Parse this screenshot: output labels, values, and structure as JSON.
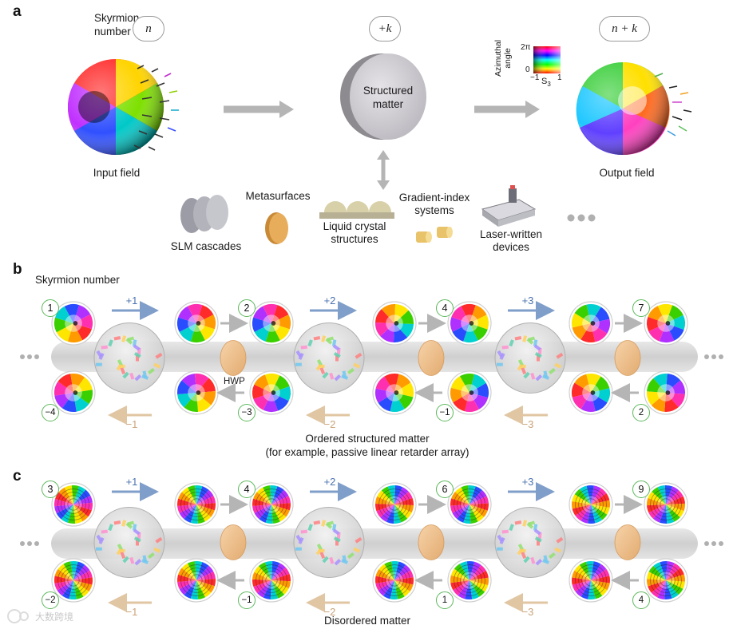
{
  "panel_a": {
    "letter": "a",
    "skyrmion_label_line1": "Skyrmion",
    "skyrmion_label_line2": "number",
    "input_pill": "n",
    "matter_pill": "+k",
    "output_pill": "n + k",
    "matter_label_line1": "Structured",
    "matter_label_line2": "matter",
    "input_label": "Input field",
    "output_label": "Output field",
    "colorbar": {
      "ylabel_line1": "Azimuthal",
      "ylabel_line2": "angle",
      "top_tick": "2π",
      "bottom_tick": "0",
      "left_tick": "−1",
      "right_tick": "1",
      "xlabel": "S",
      "xlabel_sub": "3"
    },
    "devices": [
      {
        "line1": "SLM cascades",
        "line2": ""
      },
      {
        "line1": "Metasurfaces",
        "line2": ""
      },
      {
        "line1": "Liquid crystal",
        "line2": "structures"
      },
      {
        "line1": "Gradient-index",
        "line2": "systems"
      },
      {
        "line1": "Laser-written",
        "line2": "devices"
      }
    ]
  },
  "panel_b": {
    "letter": "b",
    "heading": "Skyrmion number",
    "top_numbers": [
      "1",
      "2",
      "4",
      "7"
    ],
    "top_ops": [
      "+1",
      "+2",
      "+3"
    ],
    "bottom_numbers": [
      "−4",
      "−3",
      "−1",
      "2"
    ],
    "bottom_ops": [
      "−1",
      "−2",
      "−3"
    ],
    "hwp": "HWP",
    "caption_line1": "Ordered structured matter",
    "caption_line2": "(for example, passive linear retarder array)"
  },
  "panel_c": {
    "letter": "c",
    "top_numbers": [
      "3",
      "4",
      "6",
      "9"
    ],
    "top_ops": [
      "+1",
      "+2",
      "+3"
    ],
    "bottom_numbers": [
      "−2",
      "−1",
      "1",
      "4"
    ],
    "bottom_ops": [
      "−1",
      "−2",
      "−3"
    ],
    "caption": "Disordered matter"
  },
  "watermark": "大数跨境",
  "colors": {
    "gray_arrow": "#b5b5b5",
    "blue_arrow": "#7f9ec9",
    "tan_arrow": "#e0c6a3",
    "blue_text": "#4a73b0",
    "tan_text": "#c9a47a",
    "badge_green": "#5cb85c",
    "hwp_fill": "#f0c493",
    "rod": "#d3d3d3"
  }
}
